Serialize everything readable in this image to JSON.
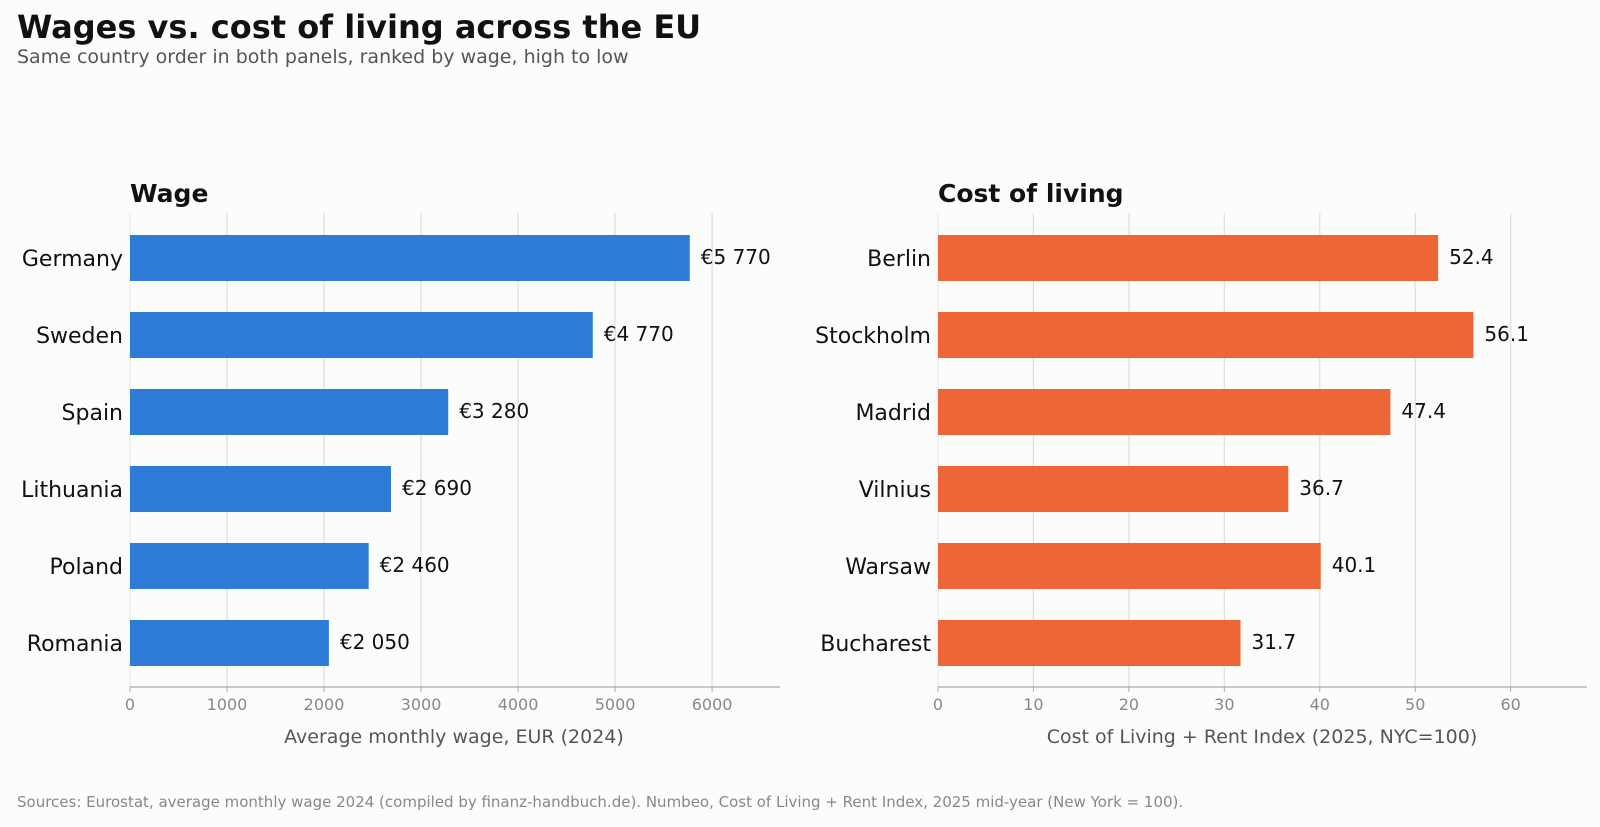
{
  "header": {
    "title": "Wages vs. cost of living across the EU",
    "subtitle": "Same country order in both panels, ranked by wage, high to low"
  },
  "footer": {
    "source": "Sources: Eurostat, average monthly wage 2024 (compiled by finanz-handbuch.de). Numbeo, Cost of Living + Rent Index, 2025 mid-year (New York = 100)."
  },
  "chart_data": [
    {
      "type": "bar",
      "orientation": "horizontal",
      "title": "Wage",
      "categories": [
        "Germany",
        "Sweden",
        "Spain",
        "Lithuania",
        "Poland",
        "Romania"
      ],
      "values": [
        5770,
        4770,
        3280,
        2690,
        2460,
        2050
      ],
      "value_labels": [
        "€5 770",
        "€4 770",
        "€3 280",
        "€2 690",
        "€2 460",
        "€2 050"
      ],
      "xlabel": "Average monthly wage, EUR (2024)",
      "ylabel": "",
      "xlim": [
        0,
        6700
      ],
      "xticks": [
        0,
        1000,
        2000,
        3000,
        4000,
        5000,
        6000
      ],
      "grid": "vertical",
      "color": "#2b7bd7"
    },
    {
      "type": "bar",
      "orientation": "horizontal",
      "title": "Cost of living",
      "categories": [
        "Berlin",
        "Stockholm",
        "Madrid",
        "Vilnius",
        "Warsaw",
        "Bucharest"
      ],
      "values": [
        52.4,
        56.1,
        47.4,
        36.7,
        40.1,
        31.7
      ],
      "value_labels": [
        "52.4",
        "56.1",
        "47.4",
        "36.7",
        "40.1",
        "31.7"
      ],
      "xlabel": "Cost of Living + Rent Index (2025, NYC=100)",
      "ylabel": "",
      "xlim": [
        0,
        68
      ],
      "xticks": [
        0,
        10,
        20,
        30,
        40,
        50,
        60
      ],
      "grid": "vertical",
      "color": "#ec6735"
    }
  ]
}
